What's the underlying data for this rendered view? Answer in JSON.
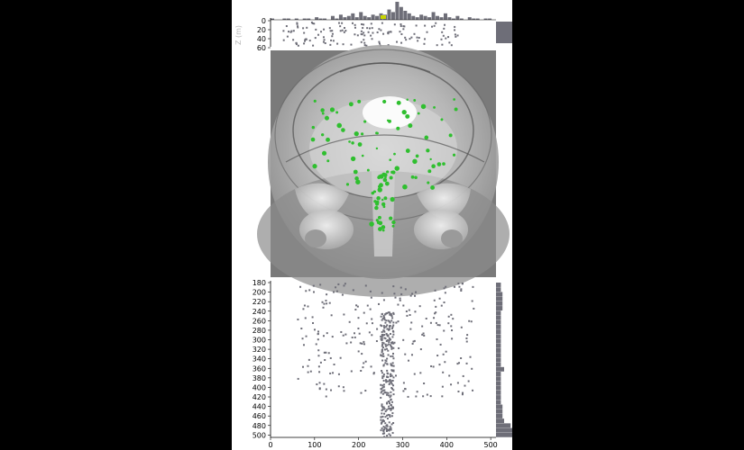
{
  "colors": {
    "background": "#000000",
    "panel": "#ffffff",
    "marks": "#6e6e78",
    "highlight": "#2fbf2f",
    "volume_bg": "#7a7a7a"
  },
  "side_label": "Z (m)",
  "icons": {
    "volume": "ct-volume-render-image"
  },
  "chart_data": [
    {
      "type": "bar",
      "title": "",
      "xlabel": "",
      "ylabel": "",
      "description_note": "",
      "values": [
        1,
        0,
        0,
        1,
        1,
        0,
        1,
        0,
        1,
        1,
        0,
        2,
        1,
        1,
        0,
        3,
        1,
        4,
        2,
        3,
        5,
        2,
        6,
        3,
        2,
        4,
        3,
        5,
        4,
        8,
        6,
        14,
        10,
        7,
        5,
        3,
        2,
        4,
        3,
        2,
        6,
        3,
        2,
        5,
        2,
        1,
        3,
        1,
        0,
        2,
        1,
        1,
        0,
        1,
        1,
        0
      ]
    },
    {
      "type": "scatter",
      "title": "",
      "yticks": [
        "0",
        "20",
        "40",
        "60"
      ],
      "ylim": [
        0,
        60
      ],
      "xlim": [
        0,
        512
      ]
    },
    {
      "type": "scatter",
      "title": "",
      "xticks": [
        "0",
        "100",
        "200",
        "300",
        "400",
        "500"
      ],
      "yticks": [
        "180",
        "200",
        "220",
        "240",
        "260",
        "280",
        "300",
        "320",
        "340",
        "360",
        "380",
        "400",
        "420",
        "440",
        "460",
        "480",
        "500"
      ],
      "xlim": [
        0,
        512
      ],
      "ylim": [
        180,
        505
      ]
    },
    {
      "type": "bar",
      "title": "",
      "orientation": "horizontal",
      "categories": [
        180,
        190,
        200,
        210,
        220,
        230,
        240,
        250,
        260,
        270,
        280,
        290,
        300,
        310,
        320,
        330,
        340,
        350,
        360,
        370,
        380,
        390,
        400,
        410,
        420,
        430,
        440,
        450,
        460,
        470,
        480,
        490,
        500
      ],
      "values": [
        3,
        3,
        4,
        4,
        4,
        4,
        3,
        3,
        3,
        3,
        3,
        3,
        3,
        3,
        3,
        3,
        3,
        3,
        5,
        3,
        3,
        3,
        3,
        3,
        3,
        3,
        4,
        4,
        4,
        5,
        9,
        10,
        10
      ]
    }
  ]
}
